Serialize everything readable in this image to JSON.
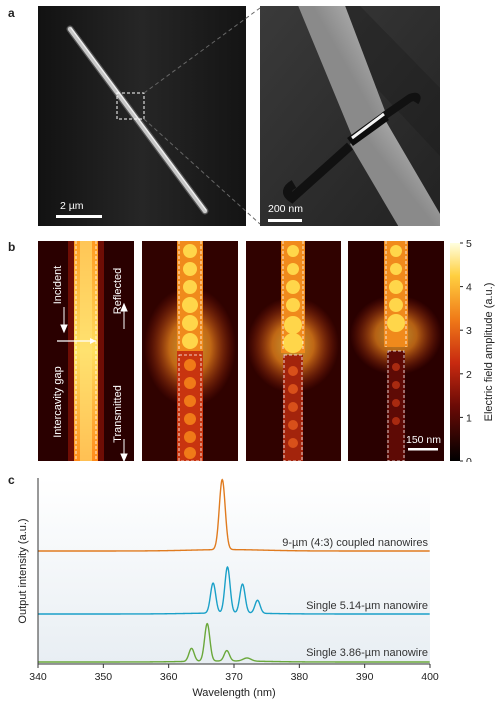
{
  "panel_a": {
    "letter": "a",
    "left_scale": "2 µm",
    "right_scale": "200 nm"
  },
  "panel_b": {
    "letter": "b",
    "labels": {
      "incident": "Incident",
      "reflected": "Reflected",
      "gap": "Intercavity gap",
      "transmitted": "Transmitted"
    },
    "scale": "150 nm",
    "colorbar_label": "Electric field amplitude (a.u.)",
    "colorbar_ticks": [
      "0",
      "1",
      "2",
      "3",
      "4",
      "5"
    ]
  },
  "chart_data": {
    "type": "line",
    "panel_letter": "c",
    "title": "",
    "xlabel": "Wavelength (nm)",
    "ylabel": "Output intensity (a.u.)",
    "xlim": [
      340,
      400
    ],
    "xticks": [
      "340",
      "350",
      "360",
      "370",
      "380",
      "390",
      "400"
    ],
    "grid": false,
    "series": [
      {
        "name": "9-µm (4:3) coupled nanowires",
        "color": "#e07b1f",
        "peaks": [
          {
            "x": 368.2,
            "h": 1.0,
            "w": 0.45
          }
        ]
      },
      {
        "name": "Single 5.14-µm nanowire",
        "color": "#1aa0c8",
        "peaks": [
          {
            "x": 366.8,
            "h": 0.6,
            "w": 0.4
          },
          {
            "x": 369.0,
            "h": 0.92,
            "w": 0.4
          },
          {
            "x": 371.3,
            "h": 0.58,
            "w": 0.4
          },
          {
            "x": 373.6,
            "h": 0.26,
            "w": 0.4
          }
        ]
      },
      {
        "name": "Single 3.86-µm nanowire",
        "color": "#6aa83a",
        "peaks": [
          {
            "x": 363.5,
            "h": 0.25,
            "w": 0.4
          },
          {
            "x": 365.9,
            "h": 0.72,
            "w": 0.4
          },
          {
            "x": 368.9,
            "h": 0.2,
            "w": 0.4
          },
          {
            "x": 372.0,
            "h": 0.06,
            "w": 0.6
          }
        ]
      }
    ]
  }
}
